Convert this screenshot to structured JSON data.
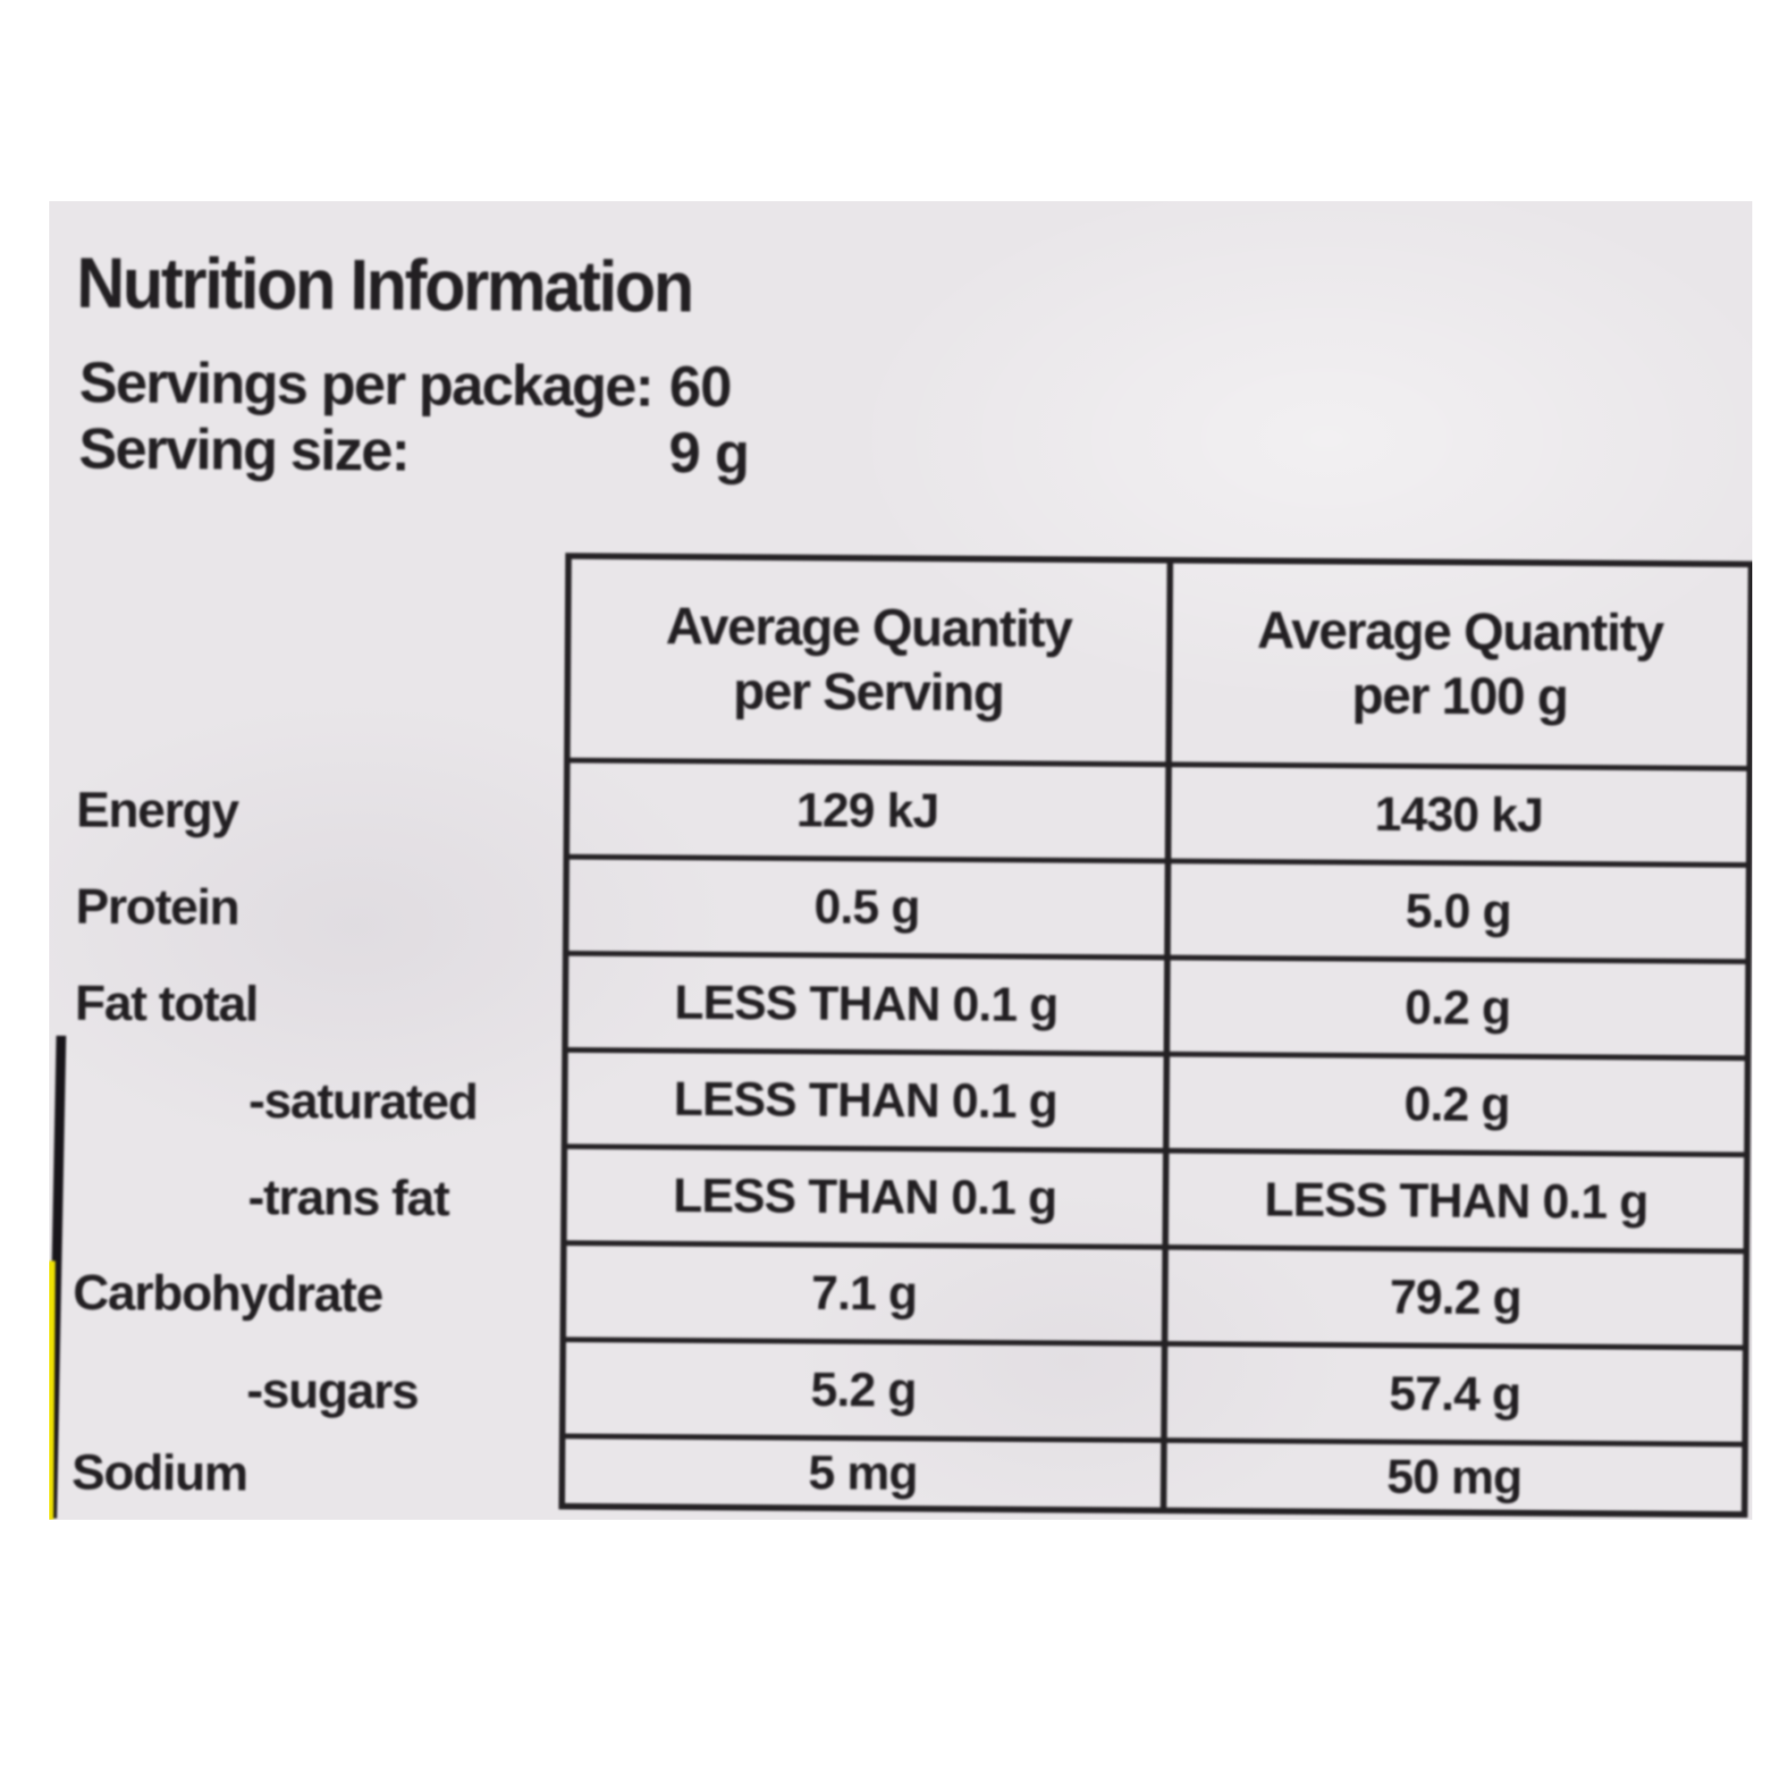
{
  "label": {
    "title": "Nutrition Information",
    "servings_per_package": {
      "label": "Servings per package:",
      "value": "60"
    },
    "serving_size": {
      "label": "Serving size:",
      "value": "9 g"
    },
    "table": {
      "column_headers": [
        {
          "line1": "Average Quantity",
          "line2": "per Serving"
        },
        {
          "line1": "Average Quantity",
          "line2": "per 100 g"
        }
      ],
      "rows": [
        {
          "nutrient": "Energy",
          "per_serving": "129 kJ",
          "per_100g": "1430 kJ"
        },
        {
          "nutrient": "Protein",
          "per_serving": "0.5 g",
          "per_100g": "5.0 g"
        },
        {
          "nutrient": "Fat total",
          "per_serving": "LESS THAN 0.1 g",
          "per_100g": "0.2 g"
        },
        {
          "nutrient": "-saturated",
          "per_serving": "LESS THAN 0.1 g",
          "per_100g": "0.2 g"
        },
        {
          "nutrient": "-trans fat",
          "per_serving": "LESS THAN 0.1 g",
          "per_100g": "LESS THAN 0.1 g"
        },
        {
          "nutrient": "Carbohydrate",
          "per_serving": "7.1 g",
          "per_100g": "79.2 g"
        },
        {
          "nutrient": "-sugars",
          "per_serving": "5.2 g",
          "per_100g": "57.4 g"
        },
        {
          "nutrient": "Sodium",
          "per_serving": "5 mg",
          "per_100g": "50 mg"
        }
      ]
    },
    "colors": {
      "page_background": "#ffffff",
      "label_background": "#e9e6e9",
      "ink": "#242124",
      "package_edge_yellow": "#f0e203"
    }
  }
}
